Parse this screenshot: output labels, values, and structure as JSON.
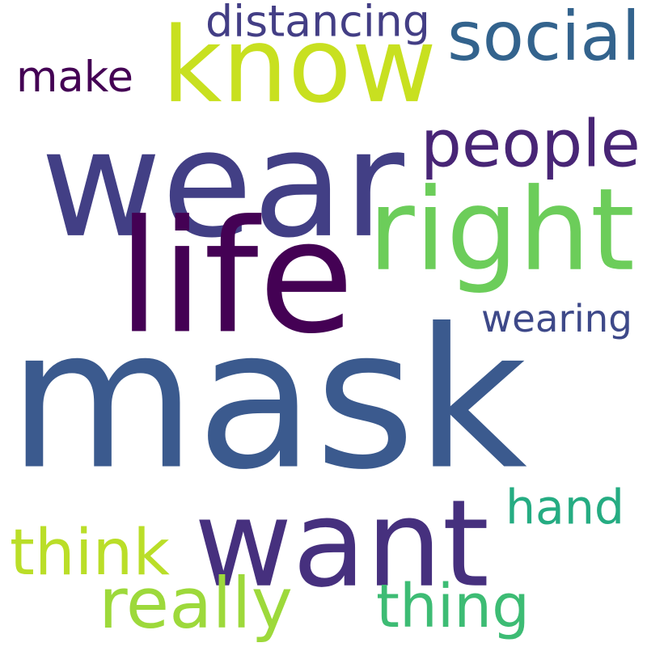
{
  "words": [
    {
      "id": "mask",
      "text": "mask",
      "color": "#3b5a8e"
    },
    {
      "id": "wear",
      "text": "wear",
      "color": "#423f85"
    },
    {
      "id": "know",
      "text": "know",
      "color": "#c8e020"
    },
    {
      "id": "want",
      "text": "want",
      "color": "#46307e"
    },
    {
      "id": "life",
      "text": "life",
      "color": "#440154"
    },
    {
      "id": "right",
      "text": "right",
      "color": "#6ccd5a"
    },
    {
      "id": "people",
      "text": "people",
      "color": "#482576"
    },
    {
      "id": "social",
      "text": "social",
      "color": "#33638d"
    },
    {
      "id": "distancing",
      "text": "distancing",
      "color": "#433e85"
    },
    {
      "id": "make",
      "text": "make",
      "color": "#440154"
    },
    {
      "id": "wearing",
      "text": "wearing",
      "color": "#3e4989"
    },
    {
      "id": "hand",
      "text": "hand",
      "color": "#25ac82"
    },
    {
      "id": "think",
      "text": "think",
      "color": "#bade28"
    },
    {
      "id": "really",
      "text": "really",
      "color": "#9dd93b"
    },
    {
      "id": "thing",
      "text": "thing",
      "color": "#3dbc74"
    }
  ]
}
